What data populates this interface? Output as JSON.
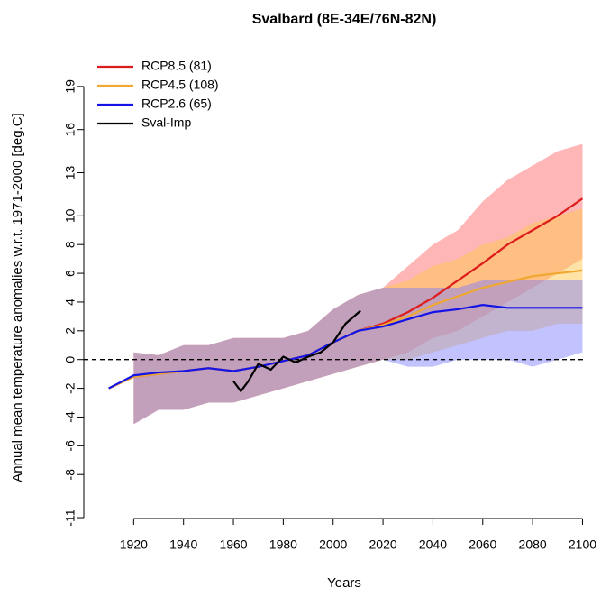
{
  "chart_data": {
    "type": "line",
    "title": "Svalbard (8E-34E/76N-82N)",
    "xlabel": "Years",
    "ylabel": "Annual mean temperature anomalies w.r.t. 1971-2000 [deg.C]",
    "x": [
      1910,
      1920,
      1930,
      1940,
      1950,
      1960,
      1970,
      1980,
      1990,
      2000,
      2010,
      2020,
      2030,
      2040,
      2050,
      2060,
      2070,
      2080,
      2090,
      2100
    ],
    "xlim": [
      1900,
      2102
    ],
    "xticks": [
      1920,
      1940,
      1960,
      1980,
      2000,
      2020,
      2040,
      2060,
      2080,
      2100
    ],
    "ylim": [
      -11.5,
      21
    ],
    "yticks": [
      -11,
      -8,
      -6,
      -4,
      -2,
      0,
      2,
      4,
      6,
      8,
      10,
      13,
      16,
      19
    ],
    "reference_line": 0,
    "legend": "top-left",
    "series": [
      {
        "name": "RCP8.5 (81)",
        "color": "#dd1c1c",
        "band_color": "rgba(255,110,110,0.5)",
        "values": [
          -2.0,
          -1.2,
          -1.0,
          -0.8,
          -0.6,
          -0.8,
          -0.5,
          -0.1,
          0.3,
          1.2,
          2.0,
          2.5,
          3.3,
          4.3,
          5.5,
          6.7,
          8.0,
          9.0,
          10.0,
          11.2
        ],
        "lower": [
          null,
          -4.5,
          -3.5,
          -3.5,
          -3.0,
          -3.0,
          -2.5,
          -2.0,
          -1.5,
          -1.0,
          -0.5,
          0,
          0.5,
          1.5,
          2.0,
          3.0,
          4.0,
          5.0,
          6.0,
          7.0
        ],
        "upper": [
          null,
          0.5,
          0.3,
          1.0,
          1.0,
          1.5,
          1.5,
          1.5,
          2.0,
          3.5,
          4.5,
          5.0,
          6.5,
          8.0,
          9.0,
          11.0,
          12.5,
          13.5,
          14.5,
          15.0
        ]
      },
      {
        "name": "RCP4.5 (108)",
        "color": "#f0a830",
        "band_color": "rgba(255,200,80,0.5)",
        "values": [
          -2.0,
          -1.2,
          -1.0,
          -0.8,
          -0.6,
          -0.8,
          -0.5,
          -0.1,
          0.3,
          1.2,
          2.0,
          2.4,
          3.0,
          3.8,
          4.4,
          5.0,
          5.4,
          5.8,
          6.0,
          6.2
        ],
        "lower": [
          null,
          -4.5,
          -3.5,
          -3.5,
          -3.0,
          -3.0,
          -2.5,
          -2.0,
          -1.5,
          -1.0,
          -0.5,
          0,
          0,
          0.5,
          1.0,
          1.5,
          2.0,
          2.0,
          2.5,
          2.5
        ],
        "upper": [
          null,
          0.5,
          0.3,
          1.0,
          1.0,
          1.5,
          1.5,
          1.5,
          2.0,
          3.5,
          4.5,
          5.0,
          5.5,
          6.5,
          7.0,
          8.0,
          8.5,
          9.5,
          10.0,
          10.5
        ]
      },
      {
        "name": "RCP2.6 (65)",
        "color": "#1414e6",
        "band_color": "rgba(120,120,255,0.45)",
        "values": [
          -2.0,
          -1.1,
          -0.9,
          -0.8,
          -0.6,
          -0.8,
          -0.5,
          -0.1,
          0.3,
          1.2,
          2.0,
          2.3,
          2.8,
          3.3,
          3.5,
          3.8,
          3.6,
          3.6,
          3.6,
          3.6
        ],
        "lower": [
          null,
          -4.5,
          -3.5,
          -3.5,
          -3.0,
          -3.0,
          -2.5,
          -2.0,
          -1.5,
          -1.0,
          -0.5,
          0,
          -0.5,
          -0.5,
          0,
          0,
          0,
          -0.5,
          0,
          0.5
        ],
        "upper": [
          null,
          0.5,
          0.3,
          1.0,
          1.0,
          1.5,
          1.5,
          1.5,
          2.0,
          3.5,
          4.5,
          5.0,
          5.0,
          5.0,
          5.0,
          5.5,
          5.5,
          5.5,
          5.5,
          5.5
        ]
      },
      {
        "name": "Sval-Imp",
        "color": "#000000",
        "x": [
          1960,
          1963,
          1966,
          1970,
          1975,
          1980,
          1985,
          1990,
          1995,
          2000,
          2005,
          2011
        ],
        "values": [
          -1.5,
          -2.2,
          -1.5,
          -0.3,
          -0.7,
          0.2,
          -0.2,
          0.2,
          0.5,
          1.2,
          2.5,
          3.4
        ]
      }
    ]
  }
}
